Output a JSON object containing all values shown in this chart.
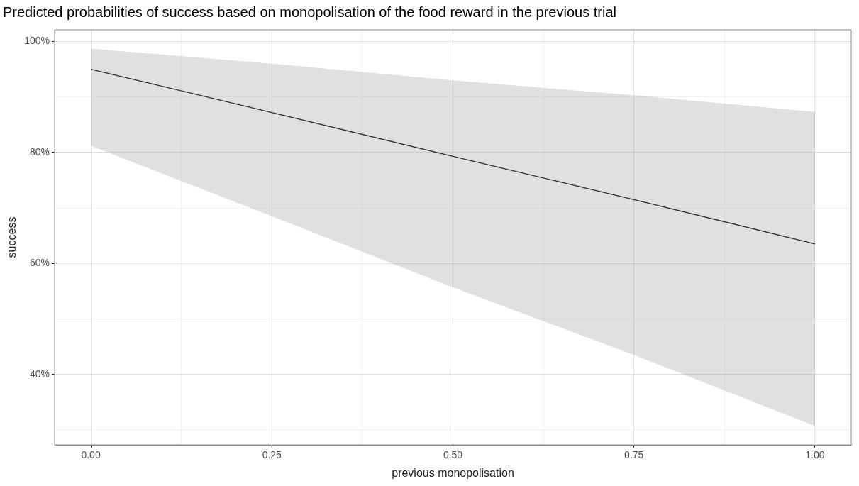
{
  "chart_data": {
    "type": "line",
    "title": "Predicted probabilities of success based on monopolisation of the food reward in the previous trial",
    "xlabel": "previous monopolisation",
    "ylabel": "success",
    "x": [
      0,
      0.25,
      0.5,
      0.75,
      1
    ],
    "series": [
      {
        "color": "#000000",
        "values": [
          95.0,
          87.2,
          79.3,
          71.5,
          63.5
        ],
        "lower": [
          81.2,
          68.5,
          55.7,
          43.5,
          30.7
        ],
        "upper": [
          98.7,
          96.0,
          93.0,
          90.3,
          87.3
        ]
      }
    ],
    "xlim": [
      -0.05,
      1.05
    ],
    "ylim": [
      27.3,
      102.1
    ],
    "xticks": [
      {
        "value": 0,
        "label": "0.00"
      },
      {
        "value": 0.125,
        "label": null
      },
      {
        "value": 0.25,
        "label": "0.25"
      },
      {
        "value": 0.375,
        "label": null
      },
      {
        "value": 0.5,
        "label": "0.50"
      },
      {
        "value": 0.625,
        "label": null
      },
      {
        "value": 0.75,
        "label": "0.75"
      },
      {
        "value": 0.875,
        "label": null
      },
      {
        "value": 1,
        "label": "1.00"
      }
    ],
    "yticks": [
      {
        "value": 30,
        "label": null
      },
      {
        "value": 40,
        "label": "40%"
      },
      {
        "value": 50,
        "label": null
      },
      {
        "value": 60,
        "label": "60%"
      },
      {
        "value": 70,
        "label": null
      },
      {
        "value": 80,
        "label": "80%"
      },
      {
        "value": 90,
        "label": null
      },
      {
        "value": 100,
        "label": "100%"
      }
    ],
    "grid": true,
    "legend": false,
    "marker": "none",
    "line_style": "solid"
  }
}
